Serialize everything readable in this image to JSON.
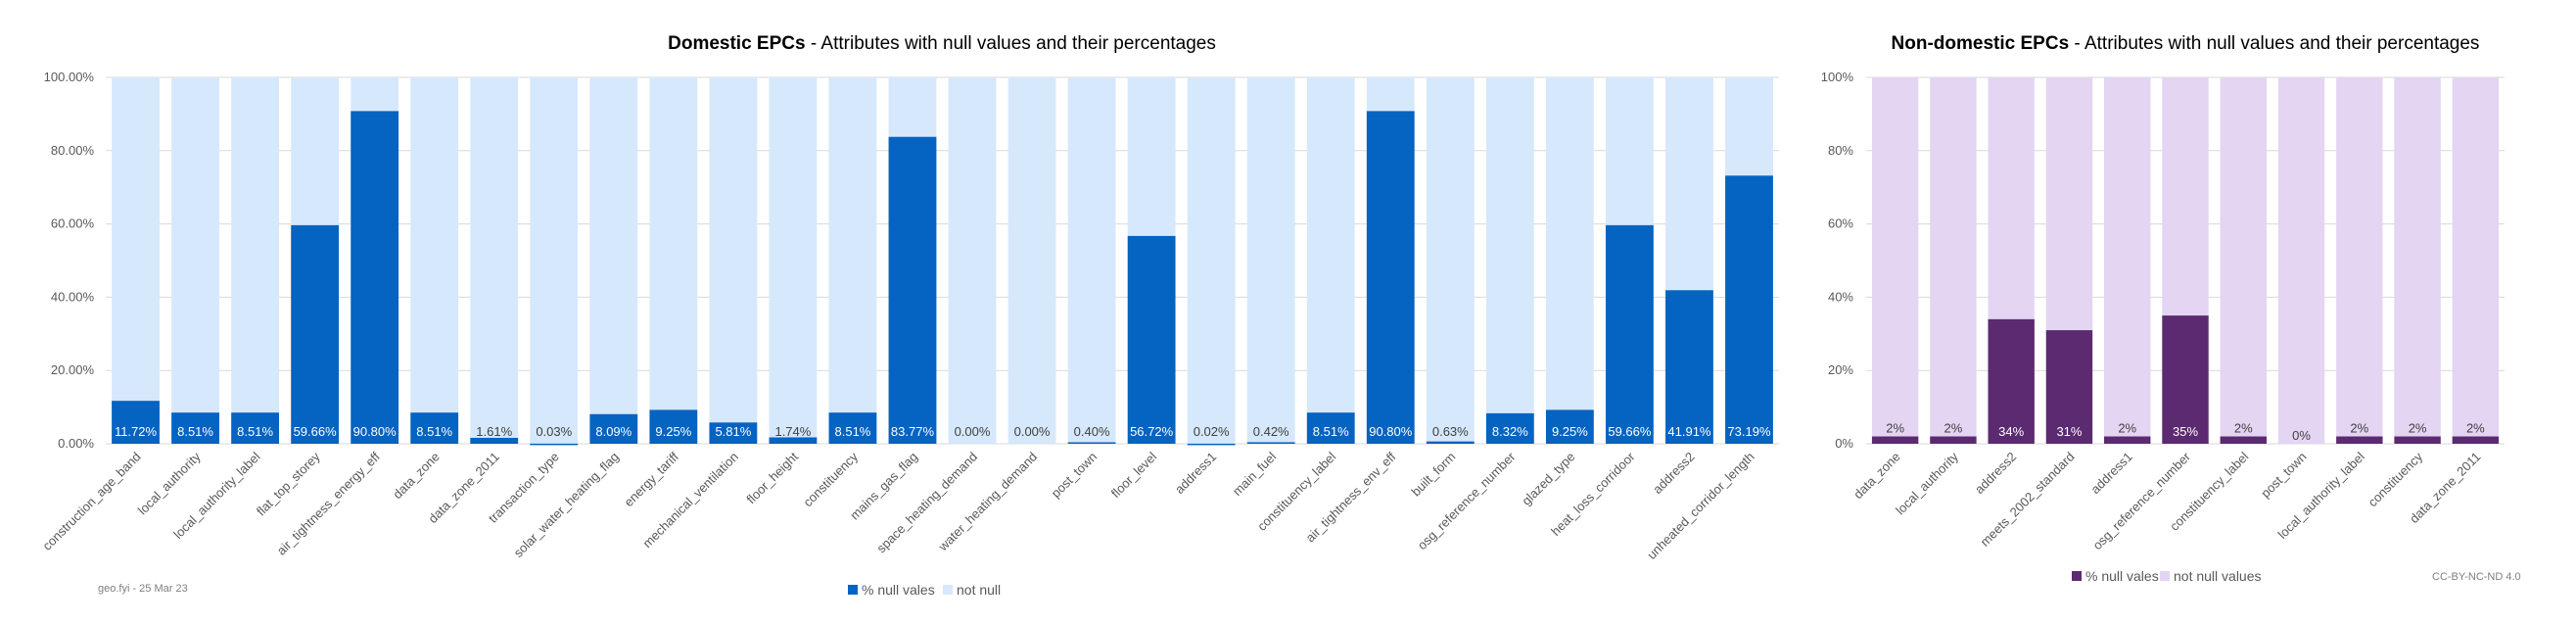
{
  "chart_data": [
    {
      "id": "domestic",
      "type": "bar",
      "stacked": true,
      "title_bold": "Domestic EPCs",
      "title_rest": " - Attributes with null values and their percentages",
      "xlabel": "",
      "ylabel": "",
      "ylim": [
        0,
        100
      ],
      "yticks": [
        "0.00%",
        "20.00%",
        "40.00%",
        "60.00%",
        "80.00%",
        "100.00%"
      ],
      "grid": true,
      "legend_position": "bottom",
      "categories": [
        "construction_age_band",
        "local_authority",
        "local_authority_label",
        "flat_top_storey",
        "air_tightness_energy_eff",
        "data_zone",
        "data_zone_2011",
        "transaction_type",
        "solar_water_heating_flag",
        "energy_tariff",
        "mechanical_ventilation",
        "floor_height",
        "constituency",
        "mains_gas_flag",
        "space_heating_demand",
        "water_heating_demand",
        "post_town",
        "floor_level",
        "address1",
        "main_fuel",
        "constituency_label",
        "air_tightness_env_eff",
        "built_form",
        "osg_reference_number",
        "glazed_type",
        "heat_loss_corridoor",
        "address2",
        "unheated_corridor_length"
      ],
      "series": [
        {
          "name": "% null vales",
          "color": "#0563c1",
          "values": [
            11.72,
            8.51,
            8.51,
            59.66,
            90.8,
            8.51,
            1.61,
            0.03,
            8.09,
            9.25,
            5.81,
            1.74,
            8.51,
            83.77,
            0.0,
            0.0,
            0.4,
            56.72,
            0.02,
            0.42,
            8.51,
            90.8,
            0.63,
            8.32,
            9.25,
            59.66,
            41.91,
            73.19
          ],
          "labels": [
            "11.72%",
            "8.51%",
            "8.51%",
            "59.66%",
            "90.80%",
            "8.51%",
            "1.61%",
            "0.03%",
            "8.09%",
            "9.25%",
            "5.81%",
            "1.74%",
            "8.51%",
            "83.77%",
            "0.00%",
            "0.00%",
            "0.40%",
            "56.72%",
            "0.02%",
            "0.42%",
            "8.51%",
            "90.80%",
            "0.63%",
            "8.32%",
            "9.25%",
            "59.66%",
            "41.91%",
            "73.19%"
          ]
        },
        {
          "name": "not null",
          "color": "#d6e8fb",
          "values": [
            88.28,
            91.49,
            91.49,
            40.34,
            9.2,
            91.49,
            98.39,
            99.97,
            91.91,
            90.75,
            94.19,
            98.26,
            91.49,
            16.23,
            100.0,
            100.0,
            99.6,
            43.28,
            99.98,
            99.58,
            91.49,
            9.2,
            99.37,
            91.68,
            90.75,
            40.34,
            58.09,
            26.81
          ]
        }
      ]
    },
    {
      "id": "non_domestic",
      "type": "bar",
      "stacked": true,
      "title_bold": "Non-domestic EPCs",
      "title_rest": " - Attributes with null values and their percentages",
      "xlabel": "",
      "ylabel": "",
      "ylim": [
        0,
        100
      ],
      "yticks": [
        "0%",
        "20%",
        "40%",
        "60%",
        "80%",
        "100%"
      ],
      "grid": true,
      "legend_position": "bottom",
      "categories": [
        "data_zone",
        "local_authority",
        "address2",
        "meets_2002_standard",
        "address1",
        "osg_reference_number",
        "constituency_label",
        "post_town",
        "local_authority_label",
        "constituency",
        "data_zone_2011"
      ],
      "series": [
        {
          "name": "% null vales",
          "color": "#5c2a70",
          "values": [
            2,
            2,
            34,
            31,
            2,
            35,
            2,
            0,
            2,
            2,
            2
          ],
          "labels": [
            "2%",
            "2%",
            "34%",
            "31%",
            "2%",
            "35%",
            "2%",
            "0%",
            "2%",
            "2%",
            "2%"
          ]
        },
        {
          "name": "not null values",
          "color": "#e4d5f3",
          "values": [
            98,
            98,
            66,
            69,
            98,
            65,
            98,
            100,
            98,
            98,
            98
          ]
        }
      ]
    }
  ],
  "footer": {
    "source": "geo.fyi - 25 Mar 23",
    "license": "CC-BY-NC-ND 4.0"
  }
}
